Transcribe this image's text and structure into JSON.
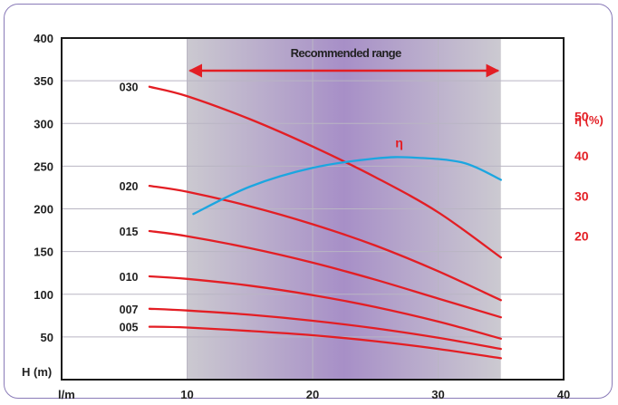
{
  "chart_data": {
    "type": "line",
    "xlabel": "l/m",
    "ylabel": "H (m)",
    "xlim": [
      0,
      40
    ],
    "ylim": [
      0,
      400
    ],
    "x_ticks": [
      "10",
      "20",
      "30",
      "40"
    ],
    "y_ticks": [
      "50",
      "100",
      "150",
      "200",
      "250",
      "300",
      "350",
      "400"
    ],
    "y2label": "η (%)",
    "y2_ticks": [
      "20",
      "30",
      "40",
      "50"
    ],
    "y2_tick_positions_in_y1_units": [
      168,
      215,
      262,
      308
    ],
    "grid": true,
    "annotation": "Recommended range",
    "recommended_range_x": [
      10,
      35
    ],
    "series": [
      {
        "name": "030",
        "x": [
          7,
          10,
          15,
          20,
          25,
          30,
          35
        ],
        "y": [
          343,
          332,
          305,
          273,
          237,
          196,
          143
        ]
      },
      {
        "name": "020",
        "x": [
          7,
          10,
          15,
          20,
          25,
          30,
          35
        ],
        "y": [
          227,
          220,
          203,
          182,
          157,
          127,
          93
        ]
      },
      {
        "name": "015",
        "x": [
          7,
          10,
          15,
          20,
          25,
          30,
          35
        ],
        "y": [
          174,
          168,
          154,
          137,
          117,
          95,
          73
        ]
      },
      {
        "name": "010",
        "x": [
          7,
          10,
          15,
          20,
          25,
          30,
          35
        ],
        "y": [
          121,
          118,
          110,
          99,
          85,
          68,
          48
        ]
      },
      {
        "name": "007",
        "x": [
          7,
          10,
          15,
          20,
          25,
          30,
          35
        ],
        "y": [
          83,
          81,
          76,
          69,
          60,
          49,
          36
        ]
      },
      {
        "name": "005",
        "x": [
          7,
          10,
          15,
          20,
          25,
          30,
          35
        ],
        "y": [
          62,
          61,
          57,
          52,
          45,
          36,
          25
        ]
      },
      {
        "name": "η",
        "x": [
          10.5,
          15,
          20,
          25,
          28,
          32,
          35
        ],
        "y": [
          194,
          226,
          248,
          259,
          260,
          254,
          234
        ]
      }
    ]
  },
  "colors": {
    "curve": "#e31e24",
    "efficiency": "#1ba6e0",
    "axis_text": "#222222",
    "shade_edge": "#c9c7ce",
    "shade_mid": "#a88fc6"
  }
}
